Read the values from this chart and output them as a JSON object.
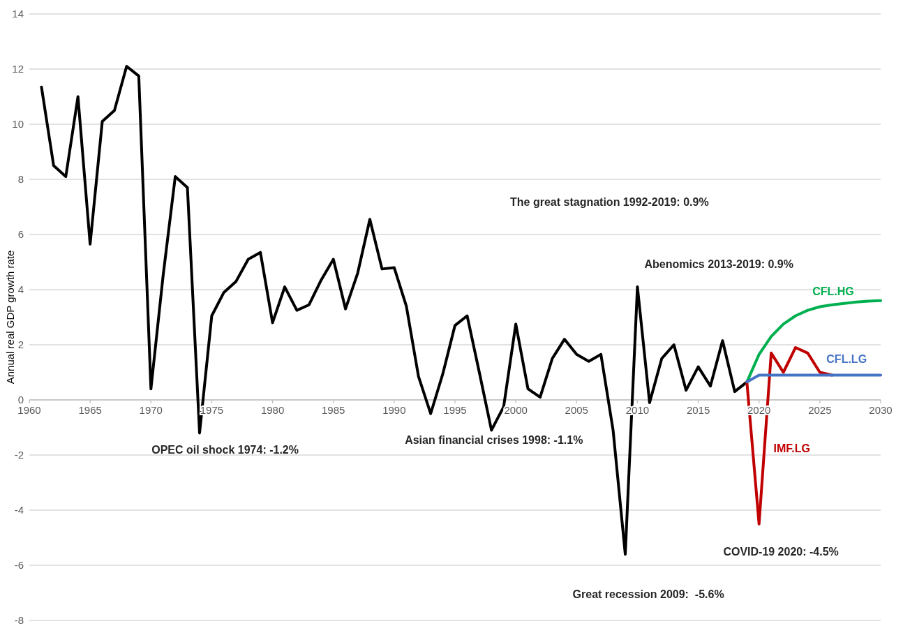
{
  "chart_data": {
    "type": "line",
    "ylabel": "Annual real GDP growth rate",
    "xlim": [
      1960,
      2030
    ],
    "xticks": [
      1960,
      1965,
      1970,
      1975,
      1980,
      1985,
      1990,
      1995,
      2000,
      2005,
      2010,
      2015,
      2020,
      2025,
      2030
    ],
    "ylim": [
      -8,
      14
    ],
    "yticks": [
      -8,
      -6,
      -4,
      -2,
      0,
      2,
      4,
      6,
      8,
      10,
      12,
      14
    ],
    "grid": "y",
    "marker": "none",
    "line_style": "solid",
    "annotations": [
      "The great stagnation 1992-2019: 0.9%",
      "Abenomics 2013-2019: 0.9%",
      "OPEC oil shock 1974: -1.2%",
      "Asian financial crises 1998: -1.1%",
      "COVID-19 2020: -4.5%",
      "Great recession 2009:  -5.6%"
    ],
    "series": [
      {
        "color": "#000000",
        "x": [
          1961,
          1962,
          1963,
          1964,
          1965,
          1966,
          1967,
          1968,
          1969,
          1970,
          1971,
          1972,
          1973,
          1974,
          1975,
          1976,
          1977,
          1978,
          1979,
          1980,
          1981,
          1982,
          1983,
          1984,
          1985,
          1986,
          1987,
          1988,
          1989,
          1990,
          1991,
          1992,
          1993,
          1994,
          1995,
          1996,
          1997,
          1998,
          1999,
          2000,
          2001,
          2002,
          2003,
          2004,
          2005,
          2006,
          2007,
          2008,
          2009,
          2010,
          2011,
          2012,
          2013,
          2014,
          2015,
          2016,
          2017,
          2018,
          2019
        ],
        "values": [
          11.35,
          8.5,
          8.1,
          11.0,
          5.65,
          10.1,
          10.5,
          12.1,
          11.75,
          0.4,
          4.5,
          8.1,
          7.7,
          -1.2,
          3.05,
          3.9,
          4.3,
          5.1,
          5.35,
          2.8,
          4.1,
          3.25,
          3.45,
          4.35,
          5.1,
          3.3,
          4.6,
          6.55,
          4.75,
          4.8,
          3.4,
          0.85,
          -0.5,
          0.95,
          2.7,
          3.05,
          1.0,
          -1.1,
          -0.25,
          2.75,
          0.4,
          0.1,
          1.5,
          2.2,
          1.65,
          1.4,
          1.65,
          -1.1,
          -5.6,
          4.1,
          -0.1,
          1.5,
          2.0,
          0.35,
          1.2,
          0.5,
          2.15,
          0.3,
          0.65
        ]
      },
      {
        "name": "CFL.HG",
        "color": "#00b050",
        "x": [
          2019,
          2020,
          2021,
          2022,
          2023,
          2024,
          2025,
          2026,
          2027,
          2028,
          2029,
          2030
        ],
        "values": [
          0.65,
          1.65,
          2.3,
          2.75,
          3.05,
          3.25,
          3.38,
          3.45,
          3.5,
          3.55,
          3.58,
          3.6
        ]
      },
      {
        "name": "IMF.LG",
        "color": "#c00000",
        "x": [
          2019,
          2020,
          2021,
          2022,
          2023,
          2024,
          2025,
          2026
        ],
        "values": [
          0.65,
          -4.5,
          1.7,
          1.0,
          1.9,
          1.7,
          1.0,
          0.9
        ]
      },
      {
        "name": "CFL.LG",
        "color": "#4472c4",
        "x": [
          2019,
          2020,
          2021,
          2022,
          2023,
          2024,
          2025,
          2026,
          2027,
          2028,
          2029,
          2030
        ],
        "values": [
          0.65,
          0.9,
          0.9,
          0.9,
          0.9,
          0.9,
          0.9,
          0.9,
          0.9,
          0.9,
          0.9,
          0.9
        ]
      }
    ]
  }
}
